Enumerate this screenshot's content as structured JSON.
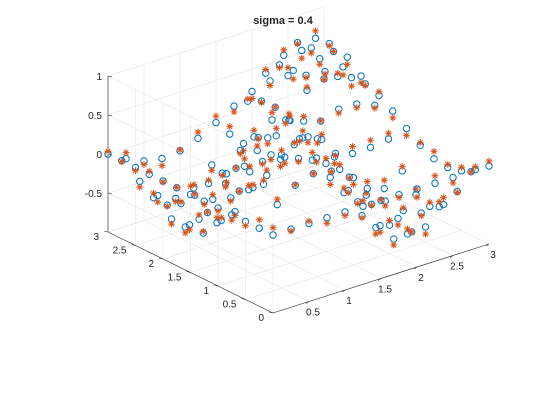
{
  "chart_data": {
    "type": "scatter3d",
    "title": "sigma = 0.4",
    "xlabel": "",
    "ylabel": "",
    "zlabel": "",
    "xlim": [
      0,
      3
    ],
    "ylim": [
      0,
      3
    ],
    "zlim": [
      -1,
      1
    ],
    "xticks": [
      "0.5",
      "1",
      "1.5",
      "2",
      "2.5",
      "3"
    ],
    "yticks": [
      "0",
      "0.5",
      "1",
      "1.5",
      "2",
      "2.5",
      "3"
    ],
    "zticks": [
      "-0.5",
      "0",
      "0.5",
      "1"
    ],
    "grid": true,
    "grid_ticks": [
      0,
      0.5,
      1,
      1.5,
      2,
      2.5,
      3
    ],
    "grid_ticks_z": [
      -1,
      -0.5,
      0,
      0.5,
      1
    ],
    "colors": {
      "series1": "#0072BD",
      "series2": "#D95319"
    },
    "series": [
      {
        "marker": "circle",
        "color": "#0072BD",
        "function": "z = sin(2x)·sin(2y)",
        "grid": {
          "from": 0,
          "to": 3,
          "step": 0.25
        }
      },
      {
        "marker": "asterisk",
        "color": "#D95319",
        "function": "z = sin(2x)·sin(2y) + noise",
        "grid": {
          "from": 0,
          "to": 3,
          "step": 0.25
        }
      }
    ]
  }
}
